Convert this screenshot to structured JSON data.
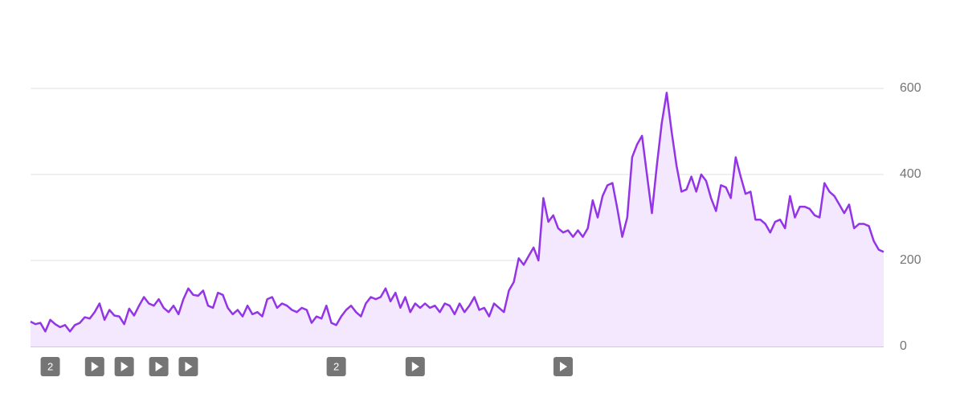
{
  "chart_data": {
    "type": "area",
    "color": "#9334e6",
    "fill_color": "#f3e8fd",
    "values": [
      58,
      52,
      55,
      35,
      62,
      52,
      45,
      50,
      35,
      50,
      55,
      68,
      65,
      80,
      100,
      62,
      85,
      72,
      70,
      52,
      88,
      72,
      95,
      115,
      100,
      95,
      110,
      90,
      80,
      95,
      75,
      110,
      135,
      120,
      118,
      130,
      95,
      90,
      125,
      120,
      90,
      75,
      85,
      70,
      95,
      75,
      80,
      70,
      110,
      115,
      90,
      100,
      95,
      85,
      80,
      90,
      85,
      55,
      70,
      65,
      95,
      55,
      50,
      70,
      85,
      95,
      80,
      70,
      100,
      115,
      110,
      115,
      135,
      105,
      125,
      90,
      115,
      80,
      100,
      90,
      100,
      90,
      95,
      80,
      100,
      95,
      75,
      100,
      80,
      95,
      115,
      85,
      90,
      70,
      100,
      90,
      80,
      130,
      150,
      205,
      190,
      210,
      230,
      200,
      345,
      290,
      305,
      275,
      265,
      270,
      255,
      270,
      255,
      275,
      340,
      300,
      350,
      375,
      380,
      320,
      255,
      300,
      440,
      470,
      490,
      400,
      310,
      420,
      520,
      590,
      500,
      420,
      360,
      365,
      395,
      360,
      400,
      385,
      345,
      315,
      375,
      370,
      345,
      440,
      395,
      355,
      360,
      295,
      295,
      285,
      265,
      290,
      295,
      275,
      350,
      300,
      325,
      325,
      320,
      305,
      300,
      380,
      360,
      350,
      330,
      310,
      330,
      275,
      285,
      285,
      280,
      245,
      225,
      220
    ],
    "ylim": [
      0,
      600
    ],
    "yticks": [
      0,
      200,
      400,
      600
    ],
    "grid": true,
    "annotations": [
      {
        "x": 4,
        "label": "2"
      },
      {
        "x": 13
      },
      {
        "x": 19
      },
      {
        "x": 26
      },
      {
        "x": 32
      },
      {
        "x": 62,
        "label": "2"
      },
      {
        "x": 78
      },
      {
        "x": 108
      }
    ]
  }
}
